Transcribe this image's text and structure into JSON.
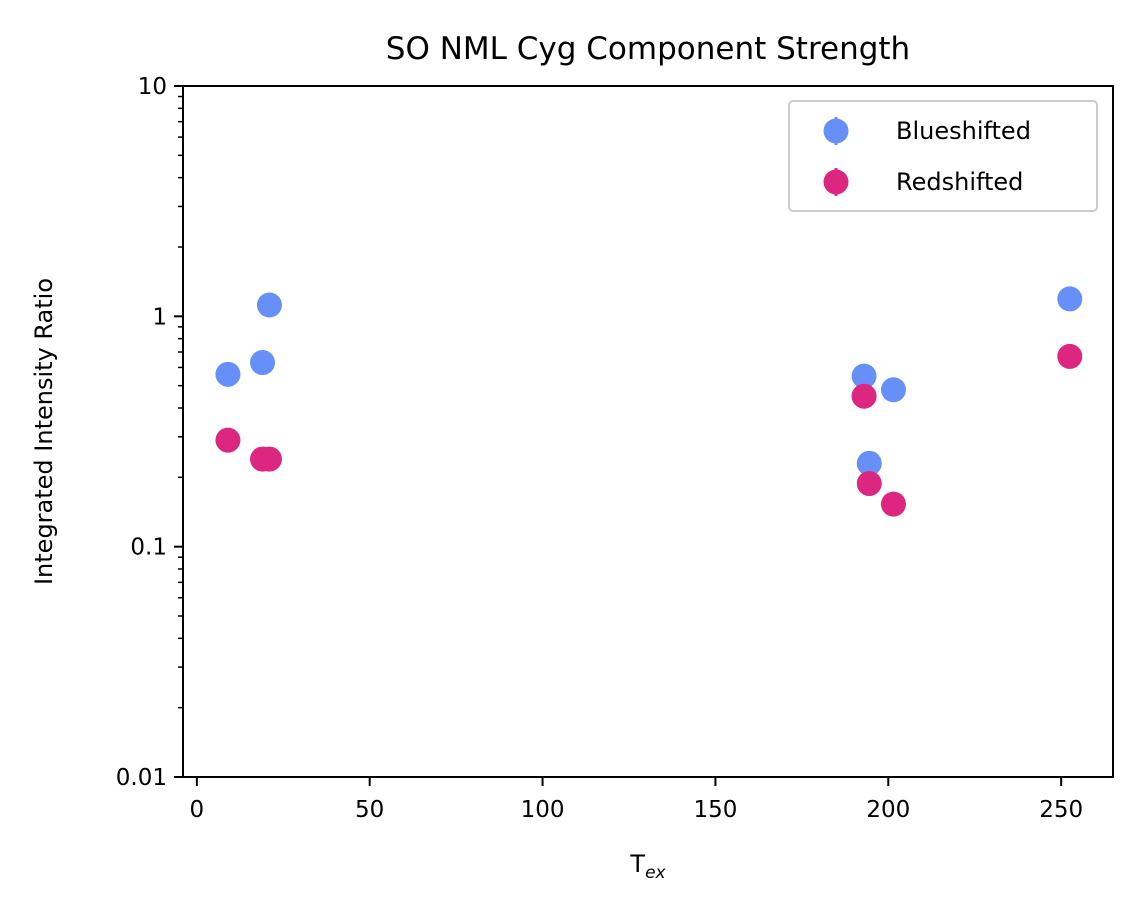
{
  "chart_data": {
    "type": "scatter",
    "title": "SO NML Cyg Component Strength",
    "xlabel": "T",
    "xlabel_sub": "ex",
    "ylabel": "Integrated Intensity Ratio",
    "yscale": "log",
    "xlim": [
      -4,
      265
    ],
    "ylim": [
      0.01,
      10
    ],
    "xticks": [
      0,
      50,
      100,
      150,
      200,
      250
    ],
    "xtick_labels": [
      "0",
      "50",
      "100",
      "150",
      "200",
      "250"
    ],
    "yticks": [
      0.01,
      0.1,
      1,
      10
    ],
    "ytick_labels": [
      "0.01",
      "0.1",
      "1",
      "10"
    ],
    "legend_position": "top-right",
    "series": [
      {
        "name": "Blueshifted",
        "color": "#6690f8",
        "points": [
          {
            "x": 9,
            "y": 0.56
          },
          {
            "x": 19,
            "y": 0.63
          },
          {
            "x": 21,
            "y": 1.12
          },
          {
            "x": 193,
            "y": 0.55
          },
          {
            "x": 194.5,
            "y": 0.23
          },
          {
            "x": 201.5,
            "y": 0.48
          },
          {
            "x": 252.5,
            "y": 1.19
          }
        ]
      },
      {
        "name": "Redshifted",
        "color": "#dc267f",
        "points": [
          {
            "x": 9,
            "y": 0.29
          },
          {
            "x": 19,
            "y": 0.24
          },
          {
            "x": 21,
            "y": 0.24
          },
          {
            "x": 193,
            "y": 0.45
          },
          {
            "x": 194.5,
            "y": 0.188
          },
          {
            "x": 201.5,
            "y": 0.153
          },
          {
            "x": 252.5,
            "y": 0.67
          }
        ]
      }
    ]
  }
}
